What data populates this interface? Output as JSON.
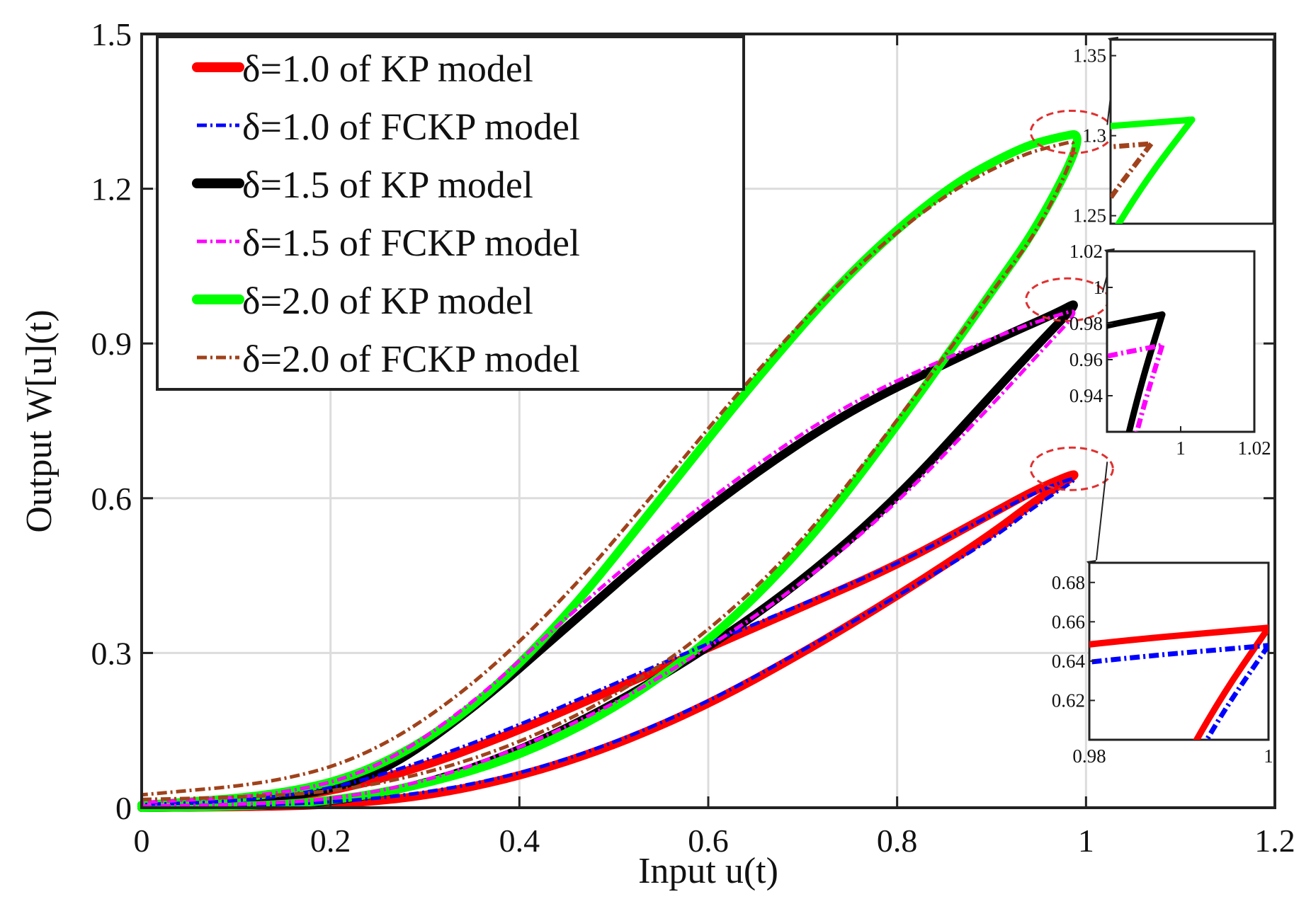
{
  "chart_data": {
    "type": "line",
    "xlabel": "Input u(t)",
    "ylabel": "Output W[u](t)",
    "xlim": [
      0,
      1.2
    ],
    "ylim": [
      0,
      1.5
    ],
    "xticks": [
      "0",
      "0.2",
      "0.4",
      "0.6",
      "0.8",
      "1",
      "1.2"
    ],
    "yticks": [
      "0",
      "0.3",
      "0.6",
      "0.9",
      "1.2",
      "1.5"
    ],
    "grid": true,
    "legend_position": "top-left",
    "series": [
      {
        "name": "δ=1.0 of KP model",
        "color": "#ff0000",
        "style": "solid-thick",
        "delta": 1.0,
        "peak": [
          1.0,
          0.657
        ],
        "ascending": [
          [
            0,
            0
          ],
          [
            0.1,
            0.001
          ],
          [
            0.2,
            0.005
          ],
          [
            0.3,
            0.022
          ],
          [
            0.4,
            0.06
          ],
          [
            0.5,
            0.12
          ],
          [
            0.6,
            0.2
          ],
          [
            0.7,
            0.3
          ],
          [
            0.8,
            0.41
          ],
          [
            0.9,
            0.53
          ],
          [
            0.95,
            0.6
          ],
          [
            1.0,
            0.657
          ]
        ],
        "descending": [
          [
            1.0,
            0.657
          ],
          [
            0.95,
            0.62
          ],
          [
            0.9,
            0.57
          ],
          [
            0.8,
            0.47
          ],
          [
            0.7,
            0.39
          ],
          [
            0.6,
            0.31
          ],
          [
            0.5,
            0.23
          ],
          [
            0.4,
            0.15
          ],
          [
            0.3,
            0.08
          ],
          [
            0.2,
            0.03
          ],
          [
            0.1,
            0.008
          ],
          [
            0,
            0.003
          ]
        ]
      },
      {
        "name": "δ=1.0 of FCKP model",
        "color": "#0000ff",
        "style": "dashdot",
        "delta": 1.0,
        "peak": [
          1.0,
          0.648
        ],
        "ascending": [
          [
            0,
            0.002
          ],
          [
            0.1,
            0.004
          ],
          [
            0.2,
            0.01
          ],
          [
            0.3,
            0.028
          ],
          [
            0.4,
            0.065
          ],
          [
            0.5,
            0.125
          ],
          [
            0.6,
            0.205
          ],
          [
            0.7,
            0.305
          ],
          [
            0.8,
            0.41
          ],
          [
            0.9,
            0.52
          ],
          [
            0.95,
            0.59
          ],
          [
            1.0,
            0.648
          ]
        ],
        "descending": [
          [
            1.0,
            0.648
          ],
          [
            0.95,
            0.615
          ],
          [
            0.9,
            0.568
          ],
          [
            0.8,
            0.472
          ],
          [
            0.7,
            0.395
          ],
          [
            0.6,
            0.318
          ],
          [
            0.5,
            0.24
          ],
          [
            0.4,
            0.16
          ],
          [
            0.3,
            0.09
          ],
          [
            0.2,
            0.035
          ],
          [
            0.1,
            0.012
          ],
          [
            0,
            0.006
          ]
        ]
      },
      {
        "name": "δ=1.5 of KP model",
        "color": "#000000",
        "style": "solid-thick",
        "delta": 1.5,
        "peak": [
          0.995,
          0.985
        ],
        "ascending": [
          [
            0,
            0
          ],
          [
            0.1,
            0.002
          ],
          [
            0.2,
            0.01
          ],
          [
            0.3,
            0.045
          ],
          [
            0.4,
            0.11
          ],
          [
            0.5,
            0.2
          ],
          [
            0.6,
            0.31
          ],
          [
            0.7,
            0.44
          ],
          [
            0.8,
            0.6
          ],
          [
            0.9,
            0.8
          ],
          [
            0.95,
            0.9
          ],
          [
            0.995,
            0.985
          ]
        ],
        "descending": [
          [
            0.995,
            0.985
          ],
          [
            0.97,
            0.96
          ],
          [
            0.92,
            0.92
          ],
          [
            0.85,
            0.86
          ],
          [
            0.75,
            0.77
          ],
          [
            0.65,
            0.65
          ],
          [
            0.55,
            0.51
          ],
          [
            0.45,
            0.35
          ],
          [
            0.35,
            0.19
          ],
          [
            0.25,
            0.06
          ],
          [
            0.15,
            0.015
          ],
          [
            0,
            0.005
          ]
        ]
      },
      {
        "name": "δ=1.5 of FCKP model",
        "color": "#ff00ff",
        "style": "dashdot",
        "delta": 1.5,
        "peak": [
          0.995,
          0.968
        ],
        "ascending": [
          [
            0,
            0.003
          ],
          [
            0.1,
            0.006
          ],
          [
            0.2,
            0.015
          ],
          [
            0.3,
            0.05
          ],
          [
            0.4,
            0.115
          ],
          [
            0.5,
            0.2
          ],
          [
            0.6,
            0.31
          ],
          [
            0.7,
            0.435
          ],
          [
            0.8,
            0.59
          ],
          [
            0.9,
            0.78
          ],
          [
            0.95,
            0.88
          ],
          [
            0.995,
            0.968
          ]
        ],
        "descending": [
          [
            0.995,
            0.968
          ],
          [
            0.97,
            0.955
          ],
          [
            0.92,
            0.925
          ],
          [
            0.85,
            0.87
          ],
          [
            0.75,
            0.785
          ],
          [
            0.65,
            0.665
          ],
          [
            0.55,
            0.525
          ],
          [
            0.45,
            0.37
          ],
          [
            0.35,
            0.2
          ],
          [
            0.25,
            0.075
          ],
          [
            0.15,
            0.025
          ],
          [
            0,
            0.01
          ]
        ]
      },
      {
        "name": "δ=2.0 of KP model",
        "color": "#00ff00",
        "style": "solid-thick",
        "delta": 2.0,
        "peak": [
          1.0,
          1.31
        ],
        "ascending": [
          [
            0,
            0
          ],
          [
            0.1,
            0.002
          ],
          [
            0.2,
            0.012
          ],
          [
            0.3,
            0.045
          ],
          [
            0.4,
            0.1
          ],
          [
            0.5,
            0.19
          ],
          [
            0.6,
            0.32
          ],
          [
            0.7,
            0.5
          ],
          [
            0.8,
            0.74
          ],
          [
            0.9,
            1.0
          ],
          [
            0.95,
            1.13
          ],
          [
            1.0,
            1.31
          ]
        ],
        "descending": [
          [
            1.0,
            1.31
          ],
          [
            0.97,
            1.3
          ],
          [
            0.93,
            1.28
          ],
          [
            0.85,
            1.2
          ],
          [
            0.75,
            1.04
          ],
          [
            0.65,
            0.83
          ],
          [
            0.55,
            0.6
          ],
          [
            0.45,
            0.37
          ],
          [
            0.35,
            0.19
          ],
          [
            0.25,
            0.075
          ],
          [
            0.15,
            0.025
          ],
          [
            0,
            0.005
          ]
        ]
      },
      {
        "name": "δ=2.0 of FCKP model",
        "color": "#a0421b",
        "style": "dashdot",
        "delta": 2.0,
        "peak": [
          0.995,
          1.295
        ],
        "ascending": [
          [
            0,
            0.016
          ],
          [
            0.1,
            0.02
          ],
          [
            0.2,
            0.03
          ],
          [
            0.3,
            0.065
          ],
          [
            0.4,
            0.125
          ],
          [
            0.5,
            0.215
          ],
          [
            0.6,
            0.34
          ],
          [
            0.7,
            0.515
          ],
          [
            0.8,
            0.75
          ],
          [
            0.9,
            1.0
          ],
          [
            0.95,
            1.12
          ],
          [
            0.995,
            1.295
          ]
        ],
        "descending": [
          [
            0.995,
            1.295
          ],
          [
            0.97,
            1.285
          ],
          [
            0.93,
            1.265
          ],
          [
            0.85,
            1.19
          ],
          [
            0.75,
            1.04
          ],
          [
            0.65,
            0.845
          ],
          [
            0.55,
            0.625
          ],
          [
            0.45,
            0.41
          ],
          [
            0.35,
            0.235
          ],
          [
            0.25,
            0.11
          ],
          [
            0.15,
            0.05
          ],
          [
            0,
            0.025
          ]
        ]
      }
    ],
    "insets": [
      {
        "series": [
          4,
          5
        ],
        "xlim": [
          0.99,
          1.01
        ],
        "ylim": [
          1.245,
          1.36
        ],
        "yticks": [
          "1.25",
          "1.3",
          "1.35"
        ],
        "xticks": []
      },
      {
        "series": [
          2,
          3
        ],
        "xlim": [
          0.98,
          1.02
        ],
        "ylim": [
          0.92,
          1.02
        ],
        "yticks": [
          "0.94",
          "0.96",
          "0.98",
          "1",
          "1.02"
        ],
        "xticks": [
          "1",
          "1.02"
        ]
      },
      {
        "series": [
          0,
          1
        ],
        "xlim": [
          0.98,
          1.0
        ],
        "ylim": [
          0.6,
          0.69
        ],
        "yticks": [
          "0.62",
          "0.64",
          "0.66",
          "0.68"
        ],
        "xticks": [
          "0.98",
          "1"
        ]
      }
    ]
  }
}
